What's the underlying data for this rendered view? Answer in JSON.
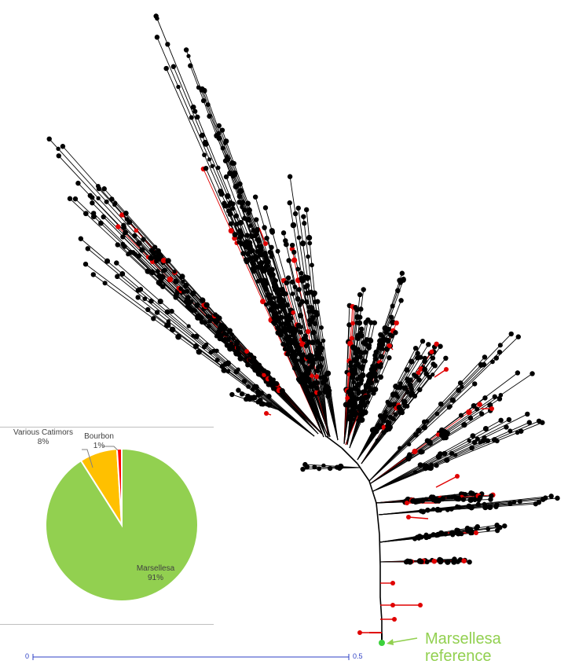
{
  "chart_data": [
    {
      "type": "pie",
      "series": [
        {
          "label": "Marsellesa",
          "percent_label": "91%",
          "value": 91,
          "color": "#92d050"
        },
        {
          "label": "Various Catimors",
          "percent_label": "8%",
          "value": 8,
          "color": "#ffc000"
        },
        {
          "label": "Bourbon",
          "percent_label": "1%",
          "value": 1,
          "color": "#ff0000"
        }
      ]
    },
    {
      "type": "tree",
      "reference_label": "Marsellesa reference",
      "reference_line1": "Marsellesa",
      "reference_line2": "reference",
      "reference_color": "#92d050",
      "highlight_color": "#e00000",
      "scale_bar": {
        "start_label": "0",
        "end_label": "0.5",
        "color": "#2c3fc4"
      }
    }
  ]
}
